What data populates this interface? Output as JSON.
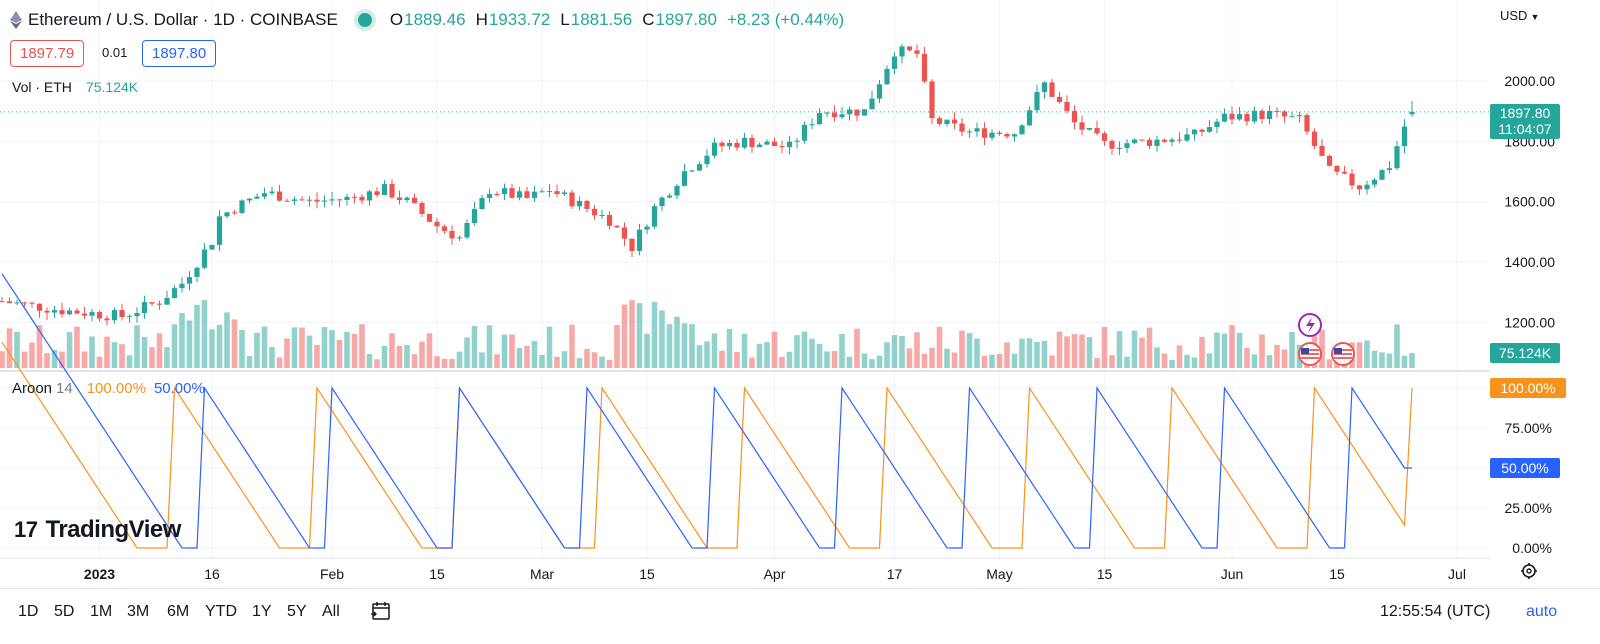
{
  "header": {
    "title": "Ethereum / U.S. Dollar · 1D · COINBASE",
    "open_label": "O",
    "open": "1889.46",
    "high_label": "H",
    "high": "1933.72",
    "low_label": "L",
    "low": "1881.56",
    "close_label": "C",
    "close": "1897.80",
    "change": "+8.23 (+0.44%)",
    "sell_price": "1897.79",
    "spread": "0.01",
    "buy_price": "1897.80",
    "volume_label": "Vol · ETH",
    "volume_value": "75.124K",
    "currency": "USD"
  },
  "price_tag": {
    "price": "1897.80",
    "countdown": "11:04:07"
  },
  "volume_tag": "75.124K",
  "aroon": {
    "label": "Aroon",
    "period": "14",
    "up_value": "100.00%",
    "down_value": "50.00%",
    "up_tag": "100.00%",
    "down_tag": "50.00%"
  },
  "logo_text": "TradingView",
  "toolbar": {
    "ranges": [
      "1D",
      "5D",
      "1M",
      "3M",
      "6M",
      "YTD",
      "1Y",
      "5Y",
      "All"
    ],
    "clock": "12:55:54 (UTC)",
    "auto": "auto"
  },
  "colors": {
    "up": "#26a69a",
    "down": "#ef5350",
    "aroon_up": "#f7931a",
    "aroon_down": "#2962ff"
  },
  "chart_data": {
    "type": "candlestick",
    "price_axis_ticks": [
      "2000.00",
      "1800.00",
      "1600.00",
      "1400.00",
      "1200.00"
    ],
    "price_axis_values": [
      2000,
      1800,
      1600,
      1400,
      1200
    ],
    "aroon_axis_ticks": [
      "100.00%",
      "75.00%",
      "50.00%",
      "25.00%",
      "0.00%"
    ],
    "aroon_axis_values": [
      100,
      75,
      50,
      25,
      0
    ],
    "x_ticks": [
      {
        "label": "2023",
        "day": 0,
        "bold": true
      },
      {
        "label": "16",
        "day": 15
      },
      {
        "label": "Feb",
        "day": 31
      },
      {
        "label": "15",
        "day": 45
      },
      {
        "label": "Mar",
        "day": 59
      },
      {
        "label": "15",
        "day": 73
      },
      {
        "label": "Apr",
        "day": 90
      },
      {
        "label": "17",
        "day": 106
      },
      {
        "label": "May",
        "day": 120
      },
      {
        "label": "15",
        "day": 134
      },
      {
        "label": "Jun",
        "day": 151
      },
      {
        "label": "15",
        "day": 165
      },
      {
        "label": "Jul",
        "day": 181
      }
    ],
    "x_axis_start_day": -13,
    "price_range": [
      1100,
      2160
    ],
    "volume_max": 400,
    "ohlc_anchors": [
      [
        -13,
        1270
      ],
      [
        -5,
        1240
      ],
      [
        3,
        1220
      ],
      [
        8,
        1270
      ],
      [
        11,
        1330
      ],
      [
        13,
        1400
      ],
      [
        15,
        1470
      ],
      [
        16,
        1550
      ],
      [
        18,
        1580
      ],
      [
        22,
        1630
      ],
      [
        28,
        1600
      ],
      [
        33,
        1610
      ],
      [
        38,
        1640
      ],
      [
        41,
        1600
      ],
      [
        45,
        1520
      ],
      [
        48,
        1480
      ],
      [
        52,
        1640
      ],
      [
        57,
        1610
      ],
      [
        60,
        1640
      ],
      [
        64,
        1590
      ],
      [
        68,
        1540
      ],
      [
        71,
        1450
      ],
      [
        74,
        1580
      ],
      [
        78,
        1700
      ],
      [
        82,
        1780
      ],
      [
        86,
        1800
      ],
      [
        92,
        1780
      ],
      [
        96,
        1900
      ],
      [
        102,
        1900
      ],
      [
        106,
        2100
      ],
      [
        109,
        2090
      ],
      [
        111,
        1870
      ],
      [
        116,
        1830
      ],
      [
        122,
        1830
      ],
      [
        126,
        1990
      ],
      [
        130,
        1860
      ],
      [
        134,
        1790
      ],
      [
        140,
        1800
      ],
      [
        146,
        1820
      ],
      [
        150,
        1880
      ],
      [
        156,
        1890
      ],
      [
        160,
        1870
      ],
      [
        164,
        1700
      ],
      [
        168,
        1650
      ],
      [
        171,
        1700
      ],
      [
        172,
        1720
      ],
      [
        174,
        1850
      ],
      [
        175,
        1897.8
      ]
    ],
    "candles_last": {
      "day": 175,
      "open": 1889.46,
      "high": 1933.72,
      "low": 1881.56,
      "close": 1897.8
    },
    "volume_last": 75.124,
    "aroon_up_last": 100,
    "aroon_down_last": 50
  }
}
